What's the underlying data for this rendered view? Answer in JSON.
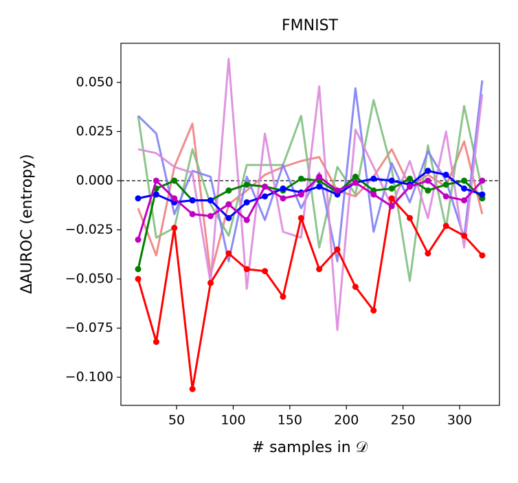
{
  "chart_data": {
    "type": "line",
    "title": "FMNIST",
    "x_label": "# samples in 𝒟",
    "y_label": "ΔAUROC (entropy)",
    "x": [
      16,
      32,
      48,
      64,
      80,
      96,
      112,
      128,
      144,
      160,
      176,
      192,
      208,
      224,
      240,
      256,
      272,
      288,
      304,
      320
    ],
    "xlim": [
      0.8,
      335.2
    ],
    "xticks": [
      50,
      100,
      150,
      200,
      250,
      300
    ],
    "ylim": [
      -0.1143,
      0.0699
    ],
    "yticks": [
      {
        "value": 0.05,
        "label": "0.050"
      },
      {
        "value": 0.025,
        "label": "0.025"
      },
      {
        "value": 0,
        "label": "0.000"
      },
      {
        "value": -0.025,
        "label": "−0.025"
      },
      {
        "value": -0.05,
        "label": "−0.050"
      },
      {
        "value": -0.075,
        "label": "−0.075"
      },
      {
        "value": -0.1,
        "label": "−0.100"
      }
    ],
    "hline": 0,
    "series": [
      {
        "color": "#f08080",
        "alpha": 0.9,
        "marker": false,
        "values": [
          -0.014,
          -0.038,
          0.007,
          0.029,
          -0.048,
          -0.012,
          -0.005,
          0.003,
          0.007,
          0.01,
          0.012,
          -0.005,
          -0.008,
          0.002,
          0.016,
          -0.003,
          0.003,
          -0.003,
          0.02,
          -0.017
        ]
      },
      {
        "color": "#7fbf7f",
        "alpha": 0.9,
        "marker": false,
        "values": [
          0.033,
          -0.029,
          -0.024,
          0.016,
          -0.012,
          -0.028,
          0.008,
          0.008,
          0.008,
          0.033,
          -0.034,
          0.007,
          -0.007,
          0.041,
          0.006,
          -0.051,
          0.018,
          -0.024,
          0.038,
          -0.005
        ]
      },
      {
        "color": "#7f7ff5",
        "alpha": 0.9,
        "marker": false,
        "values": [
          0.033,
          0.024,
          -0.017,
          0.005,
          0.002,
          -0.041,
          0.002,
          -0.02,
          0.008,
          -0.014,
          0.004,
          -0.041,
          0.047,
          -0.026,
          0.009,
          -0.011,
          0.015,
          0.0,
          -0.029,
          0.051
        ]
      },
      {
        "color": "#dd88dd",
        "alpha": 0.9,
        "marker": false,
        "values": [
          0.016,
          0.014,
          0.007,
          0.004,
          -0.052,
          0.062,
          -0.055,
          0.024,
          -0.026,
          -0.029,
          0.048,
          -0.076,
          0.026,
          0.007,
          -0.013,
          0.01,
          -0.019,
          0.025,
          -0.034,
          0.044
        ]
      },
      {
        "color": "#ff0000",
        "alpha": 1,
        "marker": true,
        "values": [
          -0.05,
          -0.082,
          -0.024,
          -0.106,
          -0.052,
          -0.037,
          -0.045,
          -0.046,
          -0.059,
          -0.019,
          -0.045,
          -0.035,
          -0.054,
          -0.066,
          -0.009,
          -0.019,
          -0.037,
          -0.023,
          -0.028,
          -0.038
        ]
      },
      {
        "color": "#008000",
        "alpha": 1,
        "marker": true,
        "values": [
          -0.045,
          -0.004,
          0.0,
          -0.01,
          -0.01,
          -0.005,
          -0.002,
          -0.003,
          -0.005,
          0.001,
          0.0,
          -0.006,
          0.002,
          -0.005,
          -0.004,
          0.001,
          -0.005,
          -0.002,
          0.0,
          -0.009
        ]
      },
      {
        "color": "#0000ff",
        "alpha": 1,
        "marker": true,
        "values": [
          -0.009,
          -0.007,
          -0.011,
          -0.01,
          -0.01,
          -0.019,
          -0.011,
          -0.008,
          -0.004,
          -0.006,
          -0.003,
          -0.007,
          -0.001,
          0.001,
          0.0,
          -0.002,
          0.005,
          0.003,
          -0.004,
          -0.007
        ]
      },
      {
        "color": "#bf00bf",
        "alpha": 1,
        "marker": true,
        "values": [
          -0.03,
          0.0,
          -0.009,
          -0.017,
          -0.018,
          -0.012,
          -0.02,
          -0.003,
          -0.009,
          -0.007,
          0.002,
          -0.005,
          -0.001,
          -0.007,
          -0.013,
          -0.003,
          0.0,
          -0.008,
          -0.01,
          0.0
        ]
      }
    ]
  }
}
